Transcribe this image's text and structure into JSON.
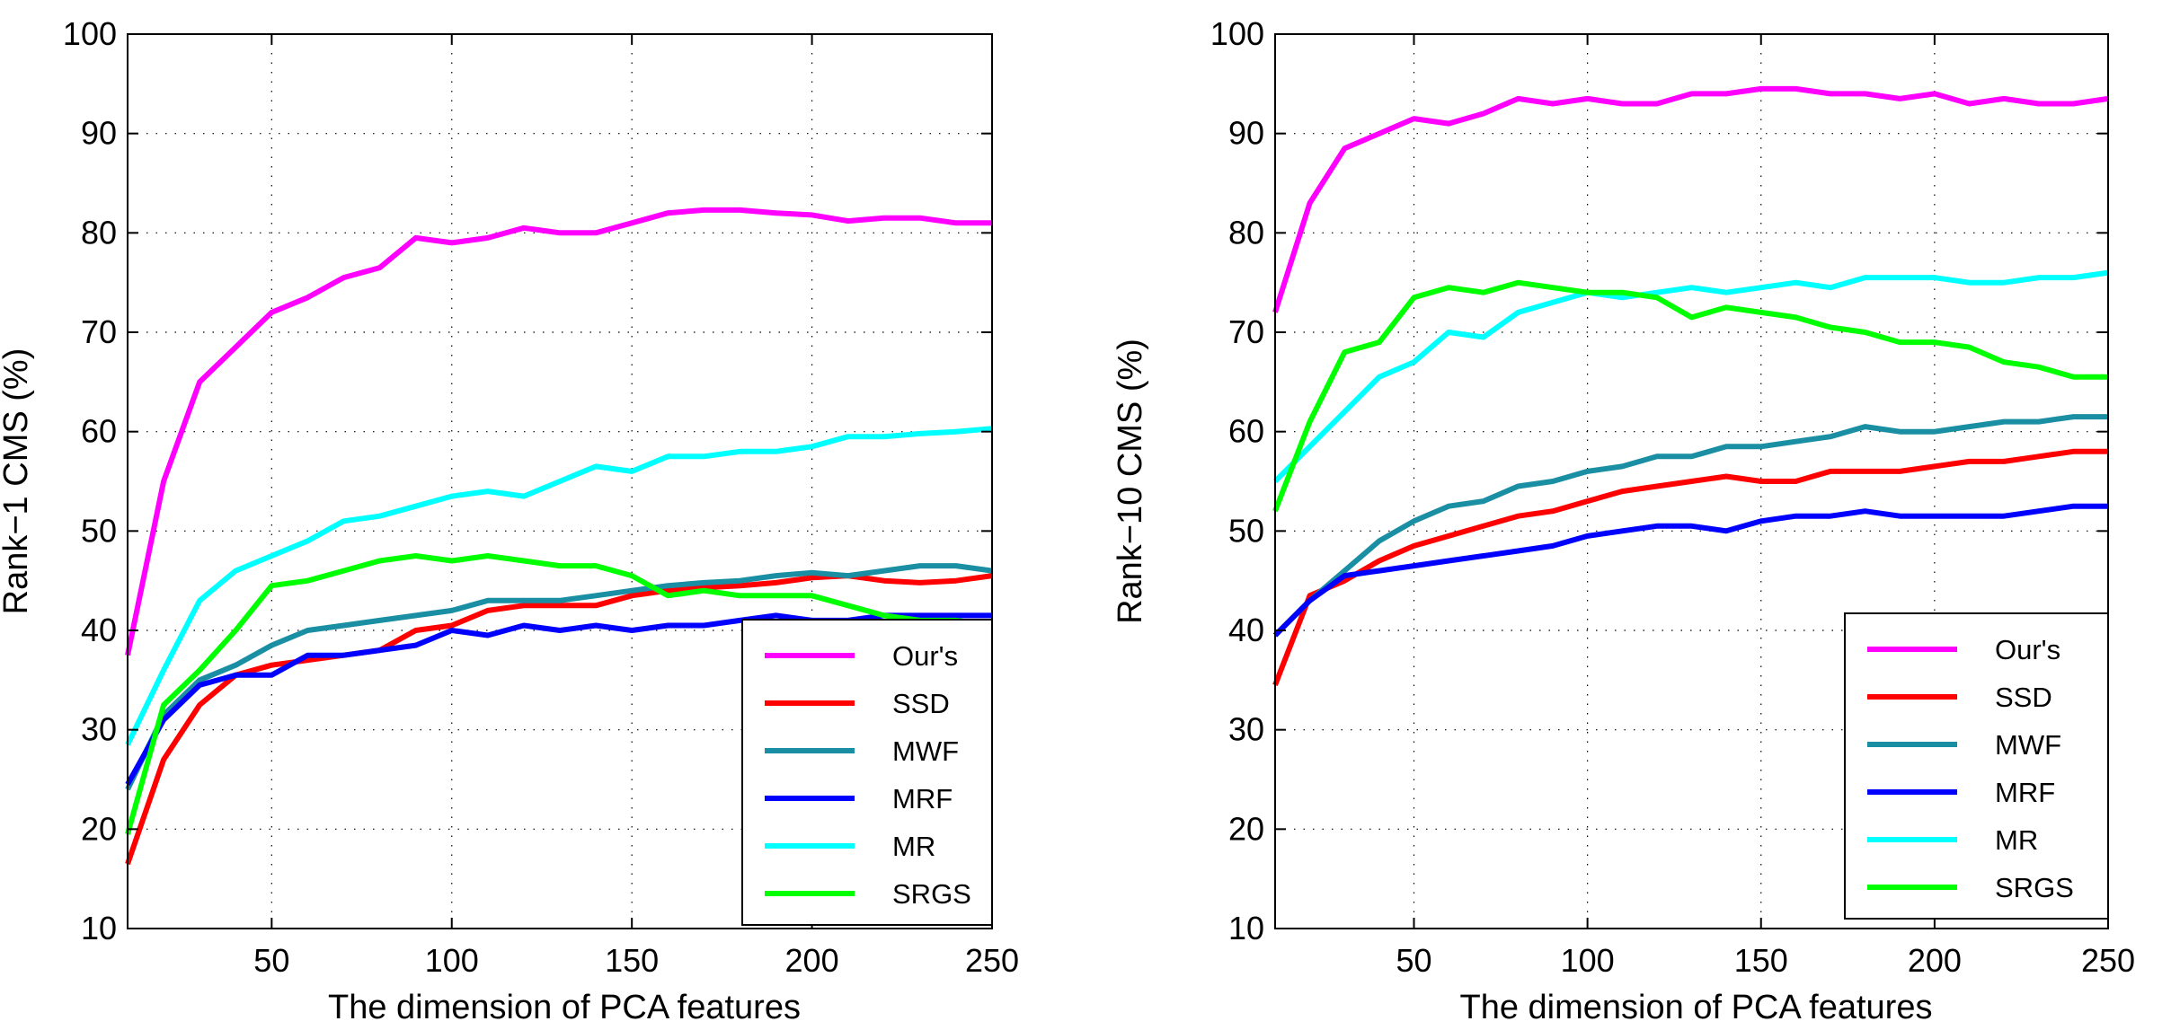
{
  "chart_data": [
    {
      "type": "line",
      "xlabel": "The dimension of PCA features",
      "ylabel": "Rank−1 CMS (%)",
      "xlim": [
        10,
        250
      ],
      "ylim": [
        10,
        100
      ],
      "xticks": [
        50,
        100,
        150,
        200,
        250
      ],
      "yticks": [
        10,
        20,
        30,
        40,
        50,
        60,
        70,
        80,
        90,
        100
      ],
      "grid": true,
      "legend": "bottom-right",
      "x": [
        10,
        20,
        30,
        40,
        50,
        60,
        70,
        80,
        90,
        100,
        110,
        120,
        130,
        140,
        150,
        160,
        170,
        180,
        190,
        200,
        210,
        220,
        230,
        240,
        250
      ],
      "series": [
        {
          "name": "Our's",
          "color": "#ff00ff",
          "values": [
            37.5,
            55,
            65,
            68.5,
            72,
            73.5,
            75.5,
            76.5,
            79.5,
            79,
            79.5,
            80.5,
            80,
            80,
            81,
            82,
            82.3,
            82.3,
            82,
            81.8,
            81.2,
            81.5,
            81.5,
            81,
            81
          ]
        },
        {
          "name": "SSD",
          "color": "#ff0000",
          "values": [
            16.5,
            27,
            32.5,
            35.5,
            36.5,
            37,
            37.5,
            38,
            40,
            40.5,
            42,
            42.5,
            42.5,
            42.5,
            43.5,
            44,
            44.3,
            44.5,
            44.8,
            45.3,
            45.5,
            45,
            44.8,
            45,
            45.5
          ]
        },
        {
          "name": "MWF",
          "color": "#1a8fa3",
          "values": [
            24,
            31.5,
            35,
            36.5,
            38.5,
            40,
            40.5,
            41,
            41.5,
            42,
            43,
            43,
            43,
            43.5,
            44,
            44.5,
            44.8,
            45,
            45.5,
            45.8,
            45.5,
            46,
            46.5,
            46.5,
            46
          ]
        },
        {
          "name": "MRF",
          "color": "#0000ff",
          "values": [
            24.5,
            31,
            34.5,
            35.5,
            35.5,
            37.5,
            37.5,
            38,
            38.5,
            40,
            39.5,
            40.5,
            40,
            40.5,
            40,
            40.5,
            40.5,
            41,
            41.5,
            41,
            41,
            41.5,
            41.5,
            41.5,
            41.5
          ]
        },
        {
          "name": "MR",
          "color": "#00ffff",
          "values": [
            28.5,
            36,
            43,
            46,
            47.5,
            49,
            51,
            51.5,
            52.5,
            53.5,
            54,
            53.5,
            55,
            56.5,
            56,
            57.5,
            57.5,
            58,
            58,
            58.5,
            59.5,
            59.5,
            59.8,
            60,
            60.3
          ]
        },
        {
          "name": "SRGS",
          "color": "#00ff00",
          "values": [
            19.5,
            32.5,
            36,
            40,
            44.5,
            45,
            46,
            47,
            47.5,
            47,
            47.5,
            47,
            46.5,
            46.5,
            45.5,
            43.5,
            44,
            43.5,
            43.5,
            43.5,
            42.5,
            41.5,
            41,
            41,
            40.5
          ]
        }
      ]
    },
    {
      "type": "line",
      "xlabel": "The dimension of PCA features",
      "ylabel": "Rank−10 CMS (%)",
      "xlim": [
        10,
        250
      ],
      "ylim": [
        10,
        100
      ],
      "xticks": [
        50,
        100,
        150,
        200,
        250
      ],
      "yticks": [
        10,
        20,
        30,
        40,
        50,
        60,
        70,
        80,
        90,
        100
      ],
      "grid": true,
      "legend": "bottom-right",
      "x": [
        10,
        20,
        30,
        40,
        50,
        60,
        70,
        80,
        90,
        100,
        110,
        120,
        130,
        140,
        150,
        160,
        170,
        180,
        190,
        200,
        210,
        220,
        230,
        240,
        250
      ],
      "series": [
        {
          "name": "Our's",
          "color": "#ff00ff",
          "values": [
            72,
            83,
            88.5,
            90,
            91.5,
            91,
            92,
            93.5,
            93,
            93.5,
            93,
            93,
            94,
            94,
            94.5,
            94.5,
            94,
            94,
            93.5,
            94,
            93,
            93.5,
            93,
            93,
            93.5
          ]
        },
        {
          "name": "SSD",
          "color": "#ff0000",
          "values": [
            34.5,
            43.5,
            45,
            47,
            48.5,
            49.5,
            50.5,
            51.5,
            52,
            53,
            54,
            54.5,
            55,
            55.5,
            55,
            55,
            56,
            56,
            56,
            56.5,
            57,
            57,
            57.5,
            58,
            58
          ]
        },
        {
          "name": "MWF",
          "color": "#1a8fa3",
          "values": [
            39.5,
            43,
            46,
            49,
            51,
            52.5,
            53,
            54.5,
            55,
            56,
            56.5,
            57.5,
            57.5,
            58.5,
            58.5,
            59,
            59.5,
            60.5,
            60,
            60,
            60.5,
            61,
            61,
            61.5,
            61.5
          ]
        },
        {
          "name": "MRF",
          "color": "#0000ff",
          "values": [
            39.5,
            43,
            45.5,
            46,
            46.5,
            47,
            47.5,
            48,
            48.5,
            49.5,
            50,
            50.5,
            50.5,
            50,
            51,
            51.5,
            51.5,
            52,
            51.5,
            51.5,
            51.5,
            51.5,
            52,
            52.5,
            52.5
          ]
        },
        {
          "name": "MR",
          "color": "#00ffff",
          "values": [
            55,
            58.5,
            62,
            65.5,
            67,
            70,
            69.5,
            72,
            73,
            74,
            73.5,
            74,
            74.5,
            74,
            74.5,
            75,
            74.5,
            75.5,
            75.5,
            75.5,
            75,
            75,
            75.5,
            75.5,
            76
          ]
        },
        {
          "name": "SRGS",
          "color": "#00ff00",
          "values": [
            52,
            61,
            68,
            69,
            73.5,
            74.5,
            74,
            75,
            74.5,
            74,
            74,
            73.5,
            71.5,
            72.5,
            72,
            71.5,
            70.5,
            70,
            69,
            69,
            68.5,
            67,
            66.5,
            65.5,
            65.5
          ]
        }
      ]
    }
  ]
}
